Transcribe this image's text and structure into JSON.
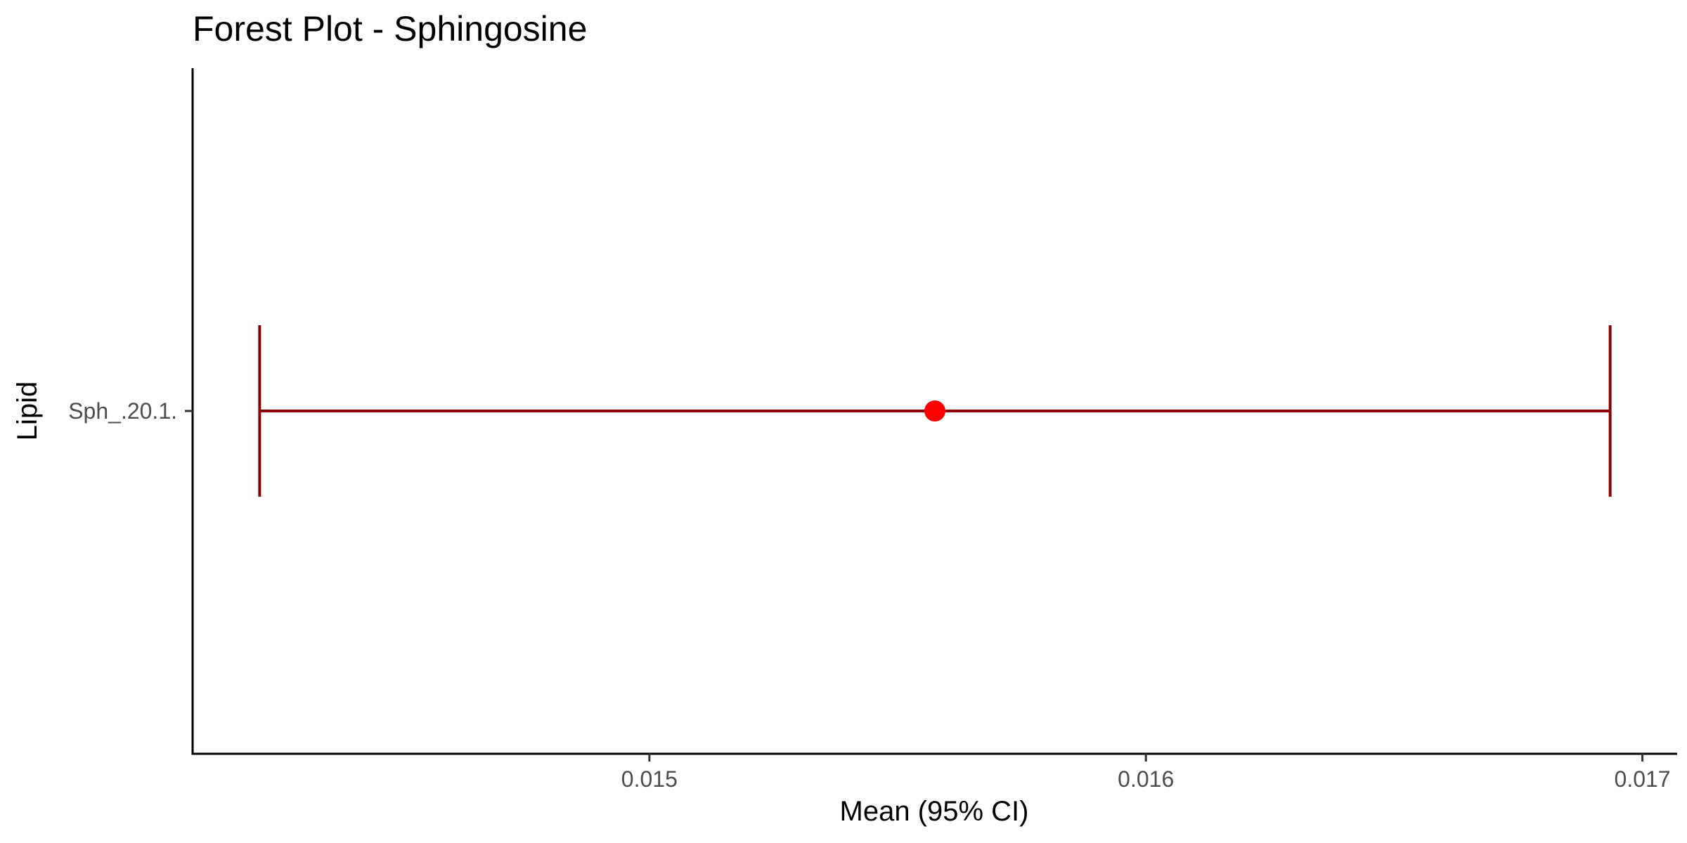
{
  "chart_data": {
    "type": "forest",
    "title": "Forest Plot - Sphingosine",
    "xlabel": "Mean (95% CI)",
    "ylabel": "Lipid",
    "xlim": [
      14.08,
      17.07
    ],
    "x_unit_note": "values in 1e-3 units",
    "x_ticks": [
      {
        "value": 15,
        "label": "0.015"
      },
      {
        "value": 16,
        "label": "0.016"
      },
      {
        "value": 17,
        "label": "0.017"
      }
    ],
    "rows": [
      {
        "label": "Sph_.20.1.",
        "mean": 0.015575,
        "lower": 0.014215,
        "upper": 0.016935
      }
    ],
    "point_color": "#ff0000",
    "ci_color": "#8b0000",
    "grid": false,
    "legend": "none"
  }
}
